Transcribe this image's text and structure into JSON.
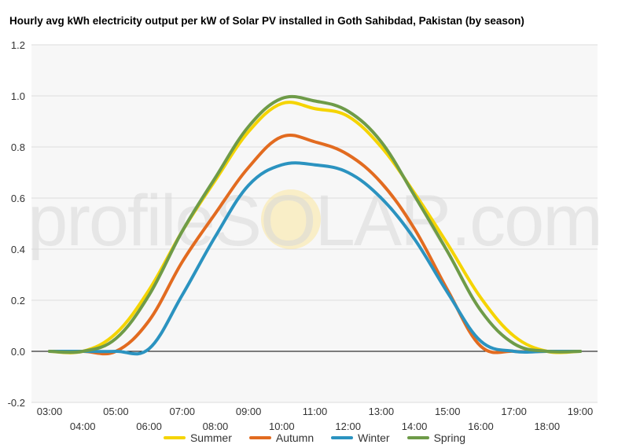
{
  "chart_data": {
    "type": "line",
    "title": "Hourly avg kWh electricity output per kW of Solar PV installed in Goth Sahibdad, Pakistan (by season)",
    "xlabel": "",
    "ylabel": "",
    "ylim": [
      -0.2,
      1.2
    ],
    "yticks": [
      "-0.2",
      "0.0",
      "0.2",
      "0.4",
      "0.6",
      "0.8",
      "1.0",
      "1.2"
    ],
    "categories": [
      "03:00",
      "04:00",
      "05:00",
      "06:00",
      "07:00",
      "08:00",
      "09:00",
      "10:00",
      "11:00",
      "12:00",
      "13:00",
      "14:00",
      "15:00",
      "16:00",
      "17:00",
      "18:00",
      "19:00"
    ],
    "series": [
      {
        "name": "Summer",
        "color": "#f5d400",
        "values": [
          0.0,
          0.0,
          0.07,
          0.24,
          0.47,
          0.67,
          0.86,
          0.97,
          0.95,
          0.92,
          0.8,
          0.62,
          0.42,
          0.21,
          0.06,
          0.0,
          0.0
        ]
      },
      {
        "name": "Autumn",
        "color": "#e26b20",
        "values": [
          0.0,
          0.0,
          0.0,
          0.12,
          0.35,
          0.54,
          0.72,
          0.84,
          0.82,
          0.77,
          0.66,
          0.48,
          0.24,
          0.02,
          0.0,
          0.0,
          0.0
        ]
      },
      {
        "name": "Winter",
        "color": "#2b93c0",
        "values": [
          0.0,
          0.0,
          0.0,
          0.01,
          0.22,
          0.45,
          0.65,
          0.73,
          0.73,
          0.7,
          0.6,
          0.44,
          0.23,
          0.04,
          0.0,
          0.0,
          0.0
        ]
      },
      {
        "name": "Spring",
        "color": "#6e9b48",
        "values": [
          0.0,
          0.0,
          0.05,
          0.22,
          0.47,
          0.68,
          0.88,
          0.99,
          0.98,
          0.94,
          0.82,
          0.61,
          0.39,
          0.16,
          0.03,
          0.0,
          0.0
        ]
      }
    ],
    "grid": true,
    "legend": "bottom"
  },
  "watermark": "profileSOLAR.com"
}
